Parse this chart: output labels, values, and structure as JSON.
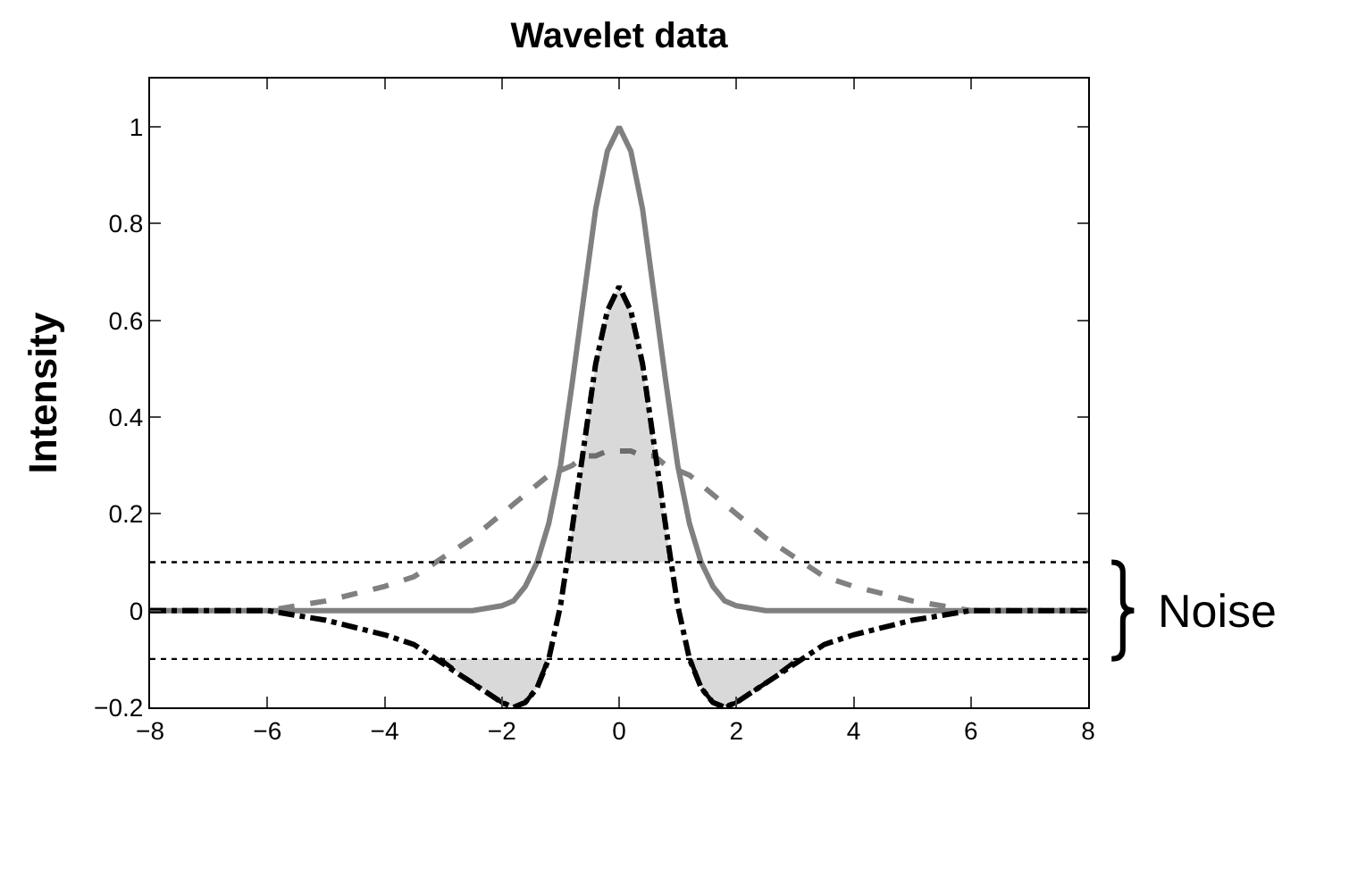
{
  "chart_data": {
    "type": "line",
    "title": "Wavelet data",
    "ylabel": "Intensity",
    "x": [
      -8,
      -7,
      -6,
      -5,
      -4,
      -3.5,
      -3,
      -2.5,
      -2,
      -1.8,
      -1.6,
      -1.4,
      -1.2,
      -1,
      -0.8,
      -0.6,
      -0.4,
      -0.2,
      0,
      0.2,
      0.4,
      0.6,
      0.8,
      1,
      1.2,
      1.4,
      1.6,
      1.8,
      2,
      2.5,
      3,
      3.5,
      4,
      5,
      6,
      7,
      8
    ],
    "series": [
      {
        "color": "#808080",
        "line_style": "solid",
        "values": [
          0,
          0,
          0,
          0,
          0,
          0,
          0,
          0,
          0.01,
          0.02,
          0.05,
          0.1,
          0.18,
          0.3,
          0.47,
          0.65,
          0.83,
          0.95,
          1,
          0.95,
          0.83,
          0.65,
          0.47,
          0.3,
          0.18,
          0.1,
          0.05,
          0.02,
          0.01,
          0,
          0,
          0,
          0,
          0,
          0,
          0,
          0
        ]
      },
      {
        "color": "#808080",
        "line_style": "dashed",
        "values": [
          0,
          0,
          0,
          0.02,
          0.05,
          0.07,
          0.11,
          0.15,
          0.2,
          0.22,
          0.24,
          0.26,
          0.28,
          0.29,
          0.3,
          0.32,
          0.32,
          0.33,
          0.33,
          0.33,
          0.32,
          0.32,
          0.3,
          0.29,
          0.28,
          0.26,
          0.24,
          0.22,
          0.2,
          0.15,
          0.11,
          0.07,
          0.05,
          0.02,
          0,
          0,
          0
        ]
      },
      {
        "color": "#000000",
        "line_style": "dashdot",
        "values": [
          0,
          0,
          0,
          -0.02,
          -0.05,
          -0.07,
          -0.11,
          -0.15,
          -0.19,
          -0.2,
          -0.19,
          -0.16,
          -0.1,
          0.01,
          0.17,
          0.34,
          0.51,
          0.62,
          0.67,
          0.62,
          0.51,
          0.34,
          0.17,
          0.01,
          -0.1,
          -0.16,
          -0.19,
          -0.2,
          -0.19,
          -0.15,
          -0.11,
          -0.07,
          -0.05,
          -0.02,
          0,
          0,
          0
        ]
      },
      {
        "color": "#000000",
        "line_style": "dashed",
        "x": [
          -0.88,
          -0.8,
          -0.6,
          -0.4,
          -0.2,
          0,
          0.2,
          0.4,
          0.6,
          0.8,
          0.88
        ],
        "values": [
          0.1,
          0.17,
          0.34,
          0.51,
          0.62,
          0.67,
          0.62,
          0.51,
          0.34,
          0.17,
          0.1
        ],
        "lower": [
          0.1,
          0.1,
          0.1,
          0.1,
          0.1,
          0.1,
          0.1,
          0.1,
          0.1,
          0.1,
          0.1
        ],
        "upper": [
          0.1,
          0.17,
          0.34,
          0.51,
          0.62,
          0.67,
          0.62,
          0.51,
          0.34,
          0.17,
          0.1
        ]
      },
      {
        "color": "#000000",
        "line_style": "dashed",
        "x": [
          -3.06,
          -2.5,
          -2,
          -1.8,
          -1.6,
          -1.4,
          -1.21
        ],
        "values": [
          -0.1,
          -0.15,
          -0.19,
          -0.2,
          -0.19,
          -0.16,
          -0.1
        ],
        "lower": [
          -0.1,
          -0.15,
          -0.19,
          -0.2,
          -0.19,
          -0.16,
          -0.1
        ],
        "upper": [
          -0.1,
          -0.1,
          -0.1,
          -0.1,
          -0.1,
          -0.1,
          -0.1
        ]
      },
      {
        "color": "#000000",
        "line_style": "dashed",
        "x": [
          1.21,
          1.4,
          1.6,
          1.8,
          2,
          2.5,
          3.06
        ],
        "values": [
          -0.1,
          -0.16,
          -0.19,
          -0.2,
          -0.19,
          -0.15,
          -0.1
        ],
        "lower": [
          -0.1,
          -0.16,
          -0.19,
          -0.2,
          -0.19,
          -0.15,
          -0.1
        ],
        "upper": [
          -0.1,
          -0.1,
          -0.1,
          -0.1,
          -0.1,
          -0.1,
          -0.1
        ]
      }
    ],
    "xlim": [
      -8,
      8
    ],
    "xticks": [
      {
        "value": -8,
        "label": "−8"
      },
      {
        "value": -6,
        "label": "−6"
      },
      {
        "value": -4,
        "label": "−4"
      },
      {
        "value": -2,
        "label": "−2"
      },
      0,
      2,
      4,
      6,
      8
    ],
    "ylim": [
      -0.2,
      1.1
    ],
    "yticks": [
      {
        "value": -0.2,
        "label": "−0.2"
      },
      0,
      0.2,
      0.4,
      0.6,
      0.8,
      1
    ],
    "grid": false,
    "ref_lines": [
      {
        "axis": "y",
        "value": 0.1,
        "color": "#000000",
        "line_style": "dotted"
      },
      {
        "axis": "y",
        "value": -0.1,
        "color": "#000000",
        "line_style": "dotted"
      }
    ],
    "annotations": [
      "Noise"
    ]
  }
}
